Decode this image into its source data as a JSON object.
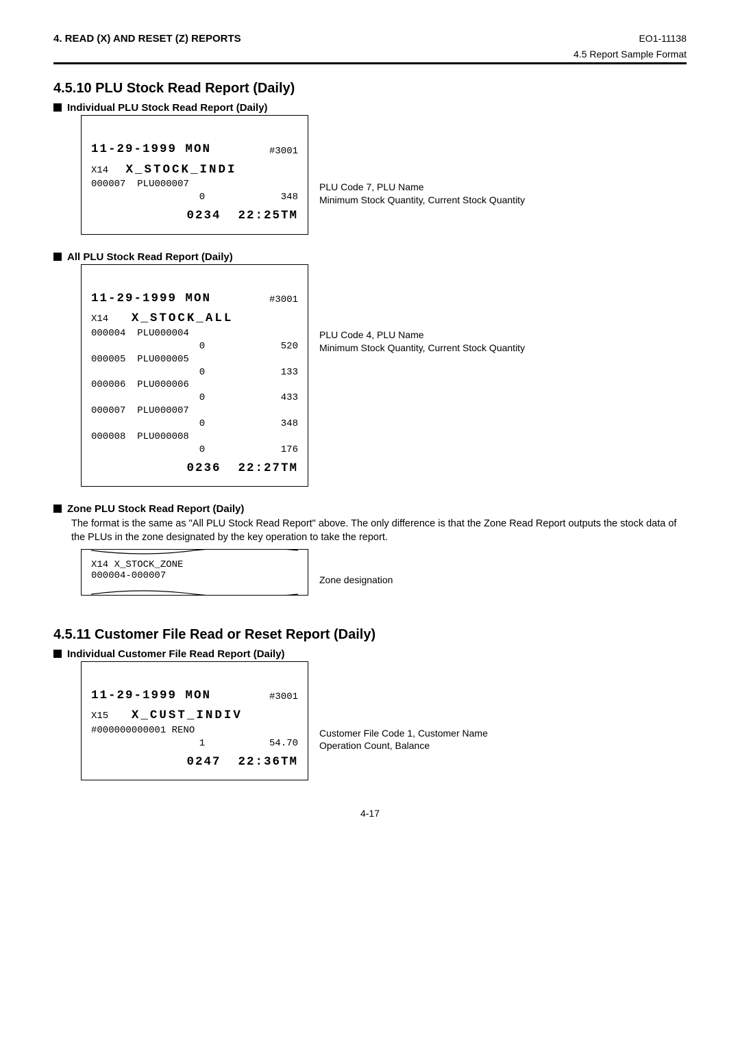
{
  "header": {
    "left": "4.   READ (X) AND RESET (Z) REPORTS",
    "right_code": "EO1-11138",
    "right_sub": "4.5  Report Sample Format"
  },
  "section_4_5_10": {
    "title": "4.5.10   PLU Stock Read Report (Daily)",
    "sub_individual": "Individual PLU Stock Read Report (Daily)",
    "sub_all": "All PLU Stock Read Report (Daily)",
    "sub_zone": "Zone PLU Stock Read Report (Daily)",
    "zone_body": "The format is the same as \"All PLU Stock Read Report\" above. The only difference is that the Zone Read Report outputs the stock data of the PLUs in the zone designated by the key operation to take the report."
  },
  "receipt_indi": {
    "date_line": "11-29-1999 MON",
    "terminal": "#3001",
    "xcode": "X14",
    "title": "X_STOCK_INDI",
    "plu_code": "000007",
    "plu_name": "PLU000007",
    "min_qty": "0",
    "cur_qty": "348",
    "footer_seq": "0234",
    "footer_time": "22:25TM",
    "note1": "PLU Code 7, PLU Name",
    "note2": "Minimum Stock Quantity, Current Stock Quantity"
  },
  "receipt_all": {
    "date_line": "11-29-1999 MON",
    "terminal": "#3001",
    "xcode": "X14",
    "title": "X_STOCK_ALL",
    "rows": [
      {
        "code": "000004",
        "name": "PLU000004",
        "min": "0",
        "cur": "520"
      },
      {
        "code": "000005",
        "name": "PLU000005",
        "min": "0",
        "cur": "133"
      },
      {
        "code": "000006",
        "name": "PLU000006",
        "min": "0",
        "cur": "433"
      },
      {
        "code": "000007",
        "name": "PLU000007",
        "min": "0",
        "cur": "348"
      },
      {
        "code": "000008",
        "name": "PLU000008",
        "min": "0",
        "cur": "176"
      }
    ],
    "footer_seq": "0236",
    "footer_time": "22:27TM",
    "note1": "PLU Code 4, PLU Name",
    "note2": "Minimum Stock Quantity, Current Stock Quantity"
  },
  "receipt_zone": {
    "xcode": "X14",
    "title": "X_STOCK_ZONE",
    "range": "000004-000007",
    "note": "Zone designation"
  },
  "section_4_5_11": {
    "title": "4.5.11   Customer File Read or Reset Report (Daily)",
    "sub_individual": "Individual Customer File Read Report (Daily)"
  },
  "receipt_cust": {
    "date_line": "11-29-1999 MON",
    "terminal": "#3001",
    "xcode": "X15",
    "title": "X_CUST_INDIV",
    "cust_code": "#000000000001",
    "cust_name": "RENO",
    "op_count": "1",
    "balance": "54.70",
    "footer_seq": "0247",
    "footer_time": "22:36TM",
    "note1": "Customer File Code 1, Customer Name",
    "note2": "Operation Count, Balance"
  },
  "page_number": "4-17"
}
